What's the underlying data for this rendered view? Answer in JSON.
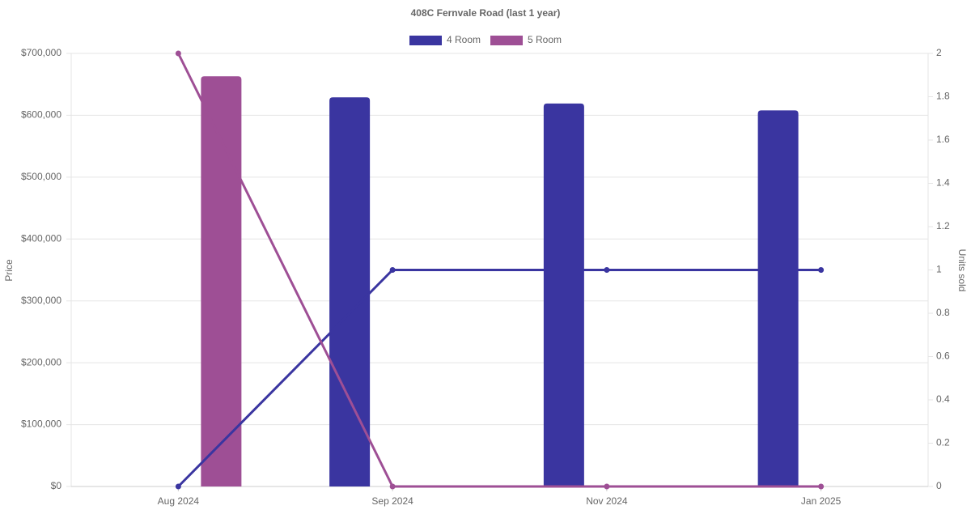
{
  "chart_data": {
    "type": "bar",
    "title": "408C Fernvale Road (last 1 year)",
    "categories": [
      "Aug 2024",
      "Sep 2024",
      "Nov 2024",
      "Jan 2025"
    ],
    "series": [
      {
        "name": "4 Room",
        "color": "#3a35a0",
        "values": [
          null,
          629000,
          619000,
          608000
        ],
        "units": [
          0,
          1,
          1,
          1
        ]
      },
      {
        "name": "5 Room",
        "color": "#9e4f95",
        "values": [
          663000,
          null,
          null,
          null
        ],
        "units": [
          2,
          0,
          0,
          0
        ]
      }
    ],
    "ylabel": "Price",
    "y2label": "Units sold",
    "ylim": [
      0,
      700000
    ],
    "yticks": [
      {
        "value": 0,
        "label": "$0"
      },
      {
        "value": 100000,
        "label": "$100,000"
      },
      {
        "value": 200000,
        "label": "$200,000"
      },
      {
        "value": 300000,
        "label": "$300,000"
      },
      {
        "value": 400000,
        "label": "$400,000"
      },
      {
        "value": 500000,
        "label": "$500,000"
      },
      {
        "value": 600000,
        "label": "$600,000"
      },
      {
        "value": 700000,
        "label": "$700,000"
      }
    ],
    "y2lim": [
      0,
      2
    ],
    "y2ticks": [
      0,
      0.2,
      0.4,
      0.6,
      0.8,
      1,
      1.2,
      1.4,
      1.6,
      1.8,
      2
    ],
    "grid": true,
    "legend": "top"
  }
}
